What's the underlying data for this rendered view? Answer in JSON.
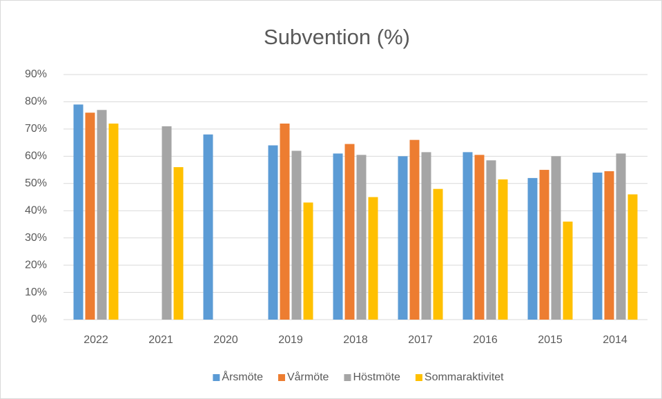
{
  "chart_data": {
    "type": "bar",
    "title": "Subvention (%)",
    "categories": [
      "2022",
      "2021",
      "2020",
      "2019",
      "2018",
      "2017",
      "2016",
      "2015",
      "2014"
    ],
    "series": [
      {
        "name": "Årsmöte",
        "color": "#5b9bd5",
        "values": [
          79,
          null,
          68,
          64,
          61,
          60,
          61.5,
          52,
          54
        ]
      },
      {
        "name": "Vårmöte",
        "color": "#ed7d31",
        "values": [
          76,
          null,
          null,
          72,
          64.5,
          66,
          60.5,
          55,
          54.5
        ]
      },
      {
        "name": "Höstmöte",
        "color": "#a5a5a5",
        "values": [
          77,
          71,
          null,
          62,
          60.5,
          61.5,
          58.5,
          60,
          61
        ]
      },
      {
        "name": "Sommaraktivitet",
        "color": "#ffc000",
        "values": [
          72,
          56,
          null,
          43,
          45,
          48,
          51.5,
          36,
          46
        ]
      }
    ],
    "ylim": [
      0,
      90
    ],
    "yticks": [
      {
        "value": 0,
        "label": "0%"
      },
      {
        "value": 10,
        "label": "10%"
      },
      {
        "value": 20,
        "label": "20%"
      },
      {
        "value": 30,
        "label": "30%"
      },
      {
        "value": 40,
        "label": "40%"
      },
      {
        "value": 50,
        "label": "50%"
      },
      {
        "value": 60,
        "label": "60%"
      },
      {
        "value": 70,
        "label": "70%"
      },
      {
        "value": 80,
        "label": "80%"
      },
      {
        "value": 90,
        "label": "90%"
      }
    ],
    "grid": true,
    "legend": "bottom"
  }
}
